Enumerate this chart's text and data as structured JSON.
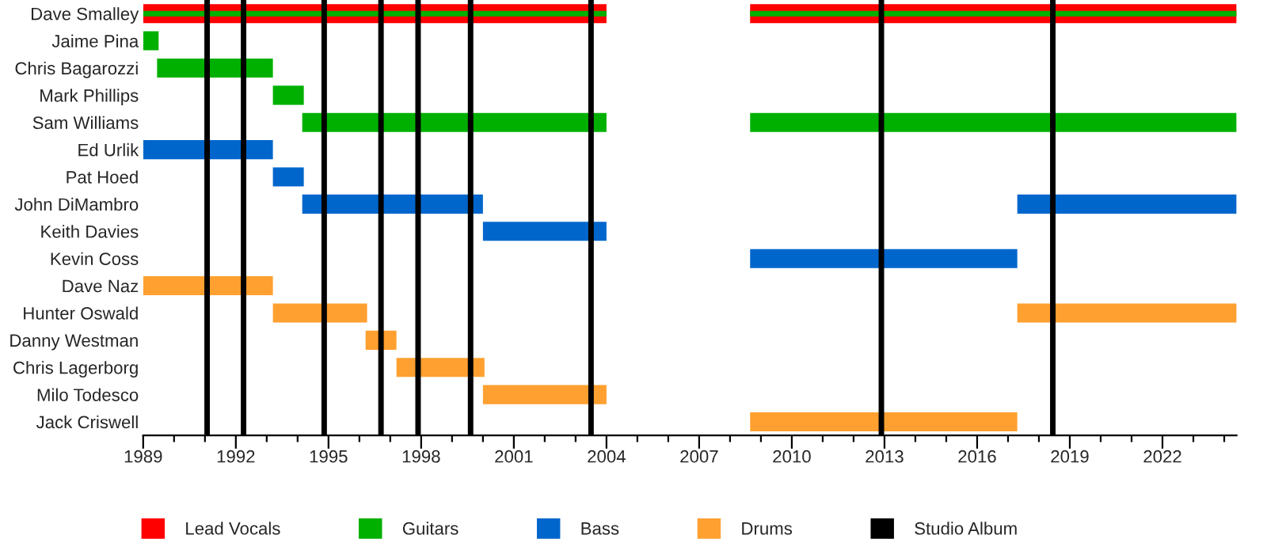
{
  "chart_data": {
    "type": "bar",
    "orientation": "horizontal",
    "categories": [
      "Dave Smalley",
      "Jaime Pina",
      "Chris Bagarozzi",
      "Mark Phillips",
      "Sam Williams",
      "Ed Urlik",
      "Pat Hoed",
      "John DiMambro",
      "Keith Davies",
      "Kevin Coss",
      "Dave Naz",
      "Hunter Oswald",
      "Danny Westman",
      "Chris Lagerborg",
      "Milo Todesco",
      "Jack Criswell"
    ],
    "series": [
      {
        "name": "Lead Vocals",
        "color": "#ff0000",
        "base": [
          1989,
          null,
          null,
          null,
          null,
          null,
          null,
          null,
          null,
          null,
          null,
          null,
          null,
          null,
          null,
          null
        ],
        "values": [
          15.0,
          null,
          null,
          null,
          null,
          null,
          null,
          null,
          null,
          null,
          null,
          null,
          null,
          null,
          null,
          null
        ]
      },
      {
        "name": "Guitars",
        "color": "#00b000",
        "base": [
          1989,
          1989,
          1989.45,
          1993.2,
          1994.15,
          null,
          null,
          null,
          null,
          null,
          null,
          null,
          null,
          null,
          null,
          null
        ],
        "values": [
          15.0,
          0.5,
          3.75,
          1.0,
          9.85,
          null,
          null,
          null,
          null,
          null,
          null,
          null,
          null,
          null,
          null,
          null
        ]
      },
      {
        "name": "Bass",
        "color": "#0066cc",
        "base": [
          null,
          null,
          null,
          null,
          null,
          1989,
          1993.2,
          1994.15,
          2000.0,
          2008.65,
          null,
          null,
          null,
          null,
          null,
          null
        ],
        "values": [
          null,
          null,
          null,
          null,
          null,
          4.2,
          1.0,
          5.85,
          4.0,
          8.65,
          null,
          null,
          null,
          null,
          null,
          null
        ]
      },
      {
        "name": "Drums",
        "color": "#ffa030",
        "base": [
          null,
          null,
          null,
          null,
          null,
          null,
          null,
          null,
          null,
          null,
          1989,
          1993.2,
          1996.2,
          1997.2,
          2000.0,
          2008.65
        ],
        "values": [
          null,
          null,
          null,
          null,
          null,
          null,
          null,
          null,
          null,
          null,
          4.2,
          3.05,
          1.0,
          2.85,
          4.0,
          8.65
        ]
      },
      {
        "color": "#ff0000",
        "base": [
          2008.65,
          null,
          null,
          null,
          null,
          null,
          null,
          null,
          null,
          null,
          null,
          null,
          null,
          null,
          null,
          null
        ],
        "values": [
          15.75,
          null,
          null,
          null,
          null,
          null,
          null,
          null,
          null,
          null,
          null,
          null,
          null,
          null,
          null,
          null
        ]
      },
      {
        "color": "#00b000",
        "base": [
          2008.65,
          null,
          null,
          null,
          2008.65,
          null,
          null,
          null,
          null,
          null,
          null,
          null,
          null,
          null,
          null,
          null
        ],
        "values": [
          15.75,
          null,
          null,
          null,
          15.75,
          null,
          null,
          null,
          null,
          null,
          null,
          null,
          null,
          null,
          null,
          null
        ]
      },
      {
        "color": "#0066cc",
        "base": [
          null,
          null,
          null,
          null,
          null,
          null,
          null,
          2017.3,
          null,
          null,
          null,
          null,
          null,
          null,
          null,
          null
        ],
        "values": [
          null,
          null,
          null,
          null,
          null,
          null,
          null,
          7.1,
          null,
          null,
          null,
          null,
          null,
          null,
          null,
          null
        ]
      },
      {
        "color": "#ffa030",
        "base": [
          null,
          null,
          null,
          null,
          null,
          null,
          null,
          null,
          null,
          null,
          null,
          2017.3,
          null,
          null,
          null,
          null
        ],
        "values": [
          null,
          null,
          null,
          null,
          null,
          null,
          null,
          null,
          null,
          null,
          null,
          7.1,
          null,
          null,
          null,
          null
        ]
      }
    ],
    "ref_lines": [
      {
        "axis": "x",
        "value": 1991.07,
        "color": "#000000",
        "label": "Studio Album"
      },
      {
        "axis": "x",
        "value": 1992.25,
        "color": "#000000"
      },
      {
        "axis": "x",
        "value": 1994.86,
        "color": "#000000"
      },
      {
        "axis": "x",
        "value": 1996.7,
        "color": "#000000"
      },
      {
        "axis": "x",
        "value": 1997.9,
        "color": "#000000"
      },
      {
        "axis": "x",
        "value": 1999.6,
        "color": "#000000"
      },
      {
        "axis": "x",
        "value": 2003.5,
        "color": "#000000"
      },
      {
        "axis": "x",
        "value": 2012.9,
        "color": "#000000"
      },
      {
        "axis": "x",
        "value": 2018.45,
        "color": "#000000"
      }
    ],
    "xlim": [
      1989,
      2024.4
    ],
    "xticks": [
      1989,
      {
        "value": 1990,
        "label": null
      },
      {
        "value": 1991,
        "label": null
      },
      1992,
      {
        "value": 1993,
        "label": null
      },
      {
        "value": 1994,
        "label": null
      },
      1995,
      {
        "value": 1996,
        "label": null
      },
      {
        "value": 1997,
        "label": null
      },
      1998,
      {
        "value": 1999,
        "label": null
      },
      {
        "value": 2000,
        "label": null
      },
      2001,
      {
        "value": 2002,
        "label": null
      },
      {
        "value": 2003,
        "label": null
      },
      2004,
      {
        "value": 2005,
        "label": null
      },
      {
        "value": 2006,
        "label": null
      },
      2007,
      {
        "value": 2008,
        "label": null
      },
      {
        "value": 2009,
        "label": null
      },
      2010,
      {
        "value": 2011,
        "label": null
      },
      {
        "value": 2012,
        "label": null
      },
      2013,
      {
        "value": 2014,
        "label": null
      },
      {
        "value": 2015,
        "label": null
      },
      2016,
      {
        "value": 2017,
        "label": null
      },
      {
        "value": 2018,
        "label": null
      },
      2019,
      {
        "value": 2020,
        "label": null
      },
      {
        "value": 2021,
        "label": null
      },
      2022,
      {
        "value": 2023,
        "label": null
      },
      {
        "value": 2024,
        "label": null
      }
    ],
    "grid": false,
    "legend": "bottom"
  }
}
